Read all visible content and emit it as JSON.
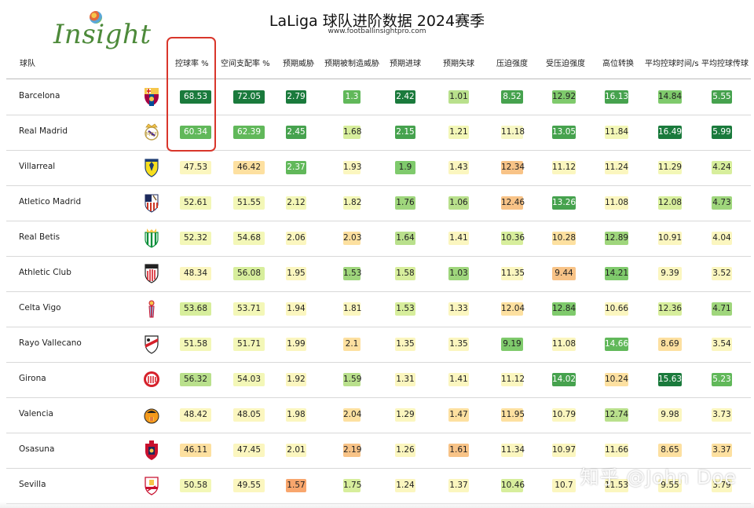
{
  "logo": {
    "text": "Insight"
  },
  "title": "LaLiga 球队进阶数据 2024赛季",
  "subtitle": "www.footballinsightpro.com",
  "headers": [
    "球队",
    "控球率 %",
    "空间支配率 %",
    "预期威胁",
    "预期被制造威胁",
    "预期进球",
    "预期失球",
    "压迫强度",
    "受压迫强度",
    "高位转换",
    "平均控球时间/s",
    "平均控球传球"
  ],
  "teams": [
    {
      "name": "Barcelona",
      "crest": "barcelona-crest",
      "values": [
        "68.53",
        "72.05",
        "2.79",
        "1.3",
        "2.42",
        "1.01",
        "8.52",
        "12.92",
        "16.13",
        "14.84",
        "5.55"
      ],
      "colors": [
        "#1a7a3c",
        "#1a7a3c",
        "#1a7a3c",
        "#61b85a",
        "#1a7a3c",
        "#b9e08c",
        "#46a24e",
        "#7fca6c",
        "#46a24e",
        "#7fca6c",
        "#46a24e"
      ]
    },
    {
      "name": "Real Madrid",
      "crest": "real-madrid-crest",
      "values": [
        "60.34",
        "62.39",
        "2.45",
        "1.68",
        "2.15",
        "1.21",
        "11.18",
        "13.05",
        "11.84",
        "16.49",
        "5.99"
      ],
      "colors": [
        "#61b85a",
        "#61b85a",
        "#46a24e",
        "#d7ee9c",
        "#46a24e",
        "#f3f7b7",
        "#f7f7c4",
        "#46a24e",
        "#f3f7b7",
        "#1a7a3c",
        "#1a7a3c"
      ]
    },
    {
      "name": "Villarreal",
      "crest": "villarreal-crest",
      "values": [
        "47.53",
        "46.42",
        "2.37",
        "1.93",
        "1.9",
        "1.43",
        "12.34",
        "11.12",
        "11.24",
        "11.29",
        "4.24"
      ],
      "colors": [
        "#fbf6bf",
        "#fde0a0",
        "#61b85a",
        "#fbf6bf",
        "#7fca6c",
        "#fbf6bf",
        "#f8c387",
        "#fbf6bf",
        "#fbf6bf",
        "#f3f7b7",
        "#d7ee9c"
      ]
    },
    {
      "name": "Atletico Madrid",
      "crest": "atletico-madrid-crest",
      "values": [
        "52.61",
        "51.55",
        "2.12",
        "1.82",
        "1.76",
        "1.06",
        "12.46",
        "13.26",
        "11.08",
        "12.08",
        "4.73"
      ],
      "colors": [
        "#f3f7b7",
        "#f3f7b7",
        "#f3f7b7",
        "#f3f7b7",
        "#9fd67c",
        "#b9e08c",
        "#f8c387",
        "#46a24e",
        "#fbf6bf",
        "#d7ee9c",
        "#9fd67c"
      ]
    },
    {
      "name": "Real Betis",
      "crest": "real-betis-crest",
      "values": [
        "52.32",
        "54.68",
        "2.06",
        "2.03",
        "1.64",
        "1.41",
        "10.36",
        "10.28",
        "12.89",
        "10.91",
        "4.04"
      ],
      "colors": [
        "#f3f7b7",
        "#f3f7b7",
        "#fbf6bf",
        "#fde0a0",
        "#b9e08c",
        "#fbf6bf",
        "#d7ee9c",
        "#fde0a0",
        "#9fd67c",
        "#fbf6bf",
        "#fbf6bf"
      ]
    },
    {
      "name": "Athletic Club",
      "crest": "athletic-club-crest",
      "values": [
        "48.34",
        "56.08",
        "1.95",
        "1.53",
        "1.58",
        "1.03",
        "11.35",
        "9.44",
        "14.21",
        "9.39",
        "3.52"
      ],
      "colors": [
        "#fbf6bf",
        "#d7ee9c",
        "#fbf6bf",
        "#9fd67c",
        "#d7ee9c",
        "#9fd67c",
        "#fbf6bf",
        "#f8c387",
        "#7fca6c",
        "#fbf6bf",
        "#fbf6bf"
      ]
    },
    {
      "name": "Celta Vigo",
      "crest": "celta-vigo-crest",
      "values": [
        "53.68",
        "53.71",
        "1.94",
        "1.81",
        "1.53",
        "1.33",
        "12.04",
        "12.84",
        "10.66",
        "12.36",
        "4.71"
      ],
      "colors": [
        "#d7ee9c",
        "#f3f7b7",
        "#fbf6bf",
        "#fbf6bf",
        "#d7ee9c",
        "#fbf6bf",
        "#fde0a0",
        "#7fca6c",
        "#fbf6bf",
        "#d7ee9c",
        "#9fd67c"
      ]
    },
    {
      "name": "Rayo Vallecano",
      "crest": "rayo-vallecano-crest",
      "values": [
        "51.58",
        "51.71",
        "1.99",
        "2.1",
        "1.35",
        "1.35",
        "9.19",
        "11.08",
        "14.66",
        "8.69",
        "3.54"
      ],
      "colors": [
        "#f3f7b7",
        "#f3f7b7",
        "#fbf6bf",
        "#fde0a0",
        "#fbf6bf",
        "#fbf6bf",
        "#7fca6c",
        "#fbf6bf",
        "#61b85a",
        "#fde0a0",
        "#fbf6bf"
      ]
    },
    {
      "name": "Girona",
      "crest": "girona-crest",
      "values": [
        "56.32",
        "54.03",
        "1.92",
        "1.59",
        "1.31",
        "1.41",
        "11.12",
        "14.02",
        "10.24",
        "15.63",
        "5.23"
      ],
      "colors": [
        "#b9e08c",
        "#f3f7b7",
        "#fbf6bf",
        "#b9e08c",
        "#fbf6bf",
        "#fbf6bf",
        "#fbf6bf",
        "#46a24e",
        "#fde0a0",
        "#1a7a3c",
        "#61b85a"
      ]
    },
    {
      "name": "Valencia",
      "crest": "valencia-crest",
      "values": [
        "48.42",
        "48.05",
        "1.98",
        "2.04",
        "1.29",
        "1.47",
        "11.95",
        "10.79",
        "12.74",
        "9.98",
        "3.73"
      ],
      "colors": [
        "#fbf6bf",
        "#fbf6bf",
        "#fbf6bf",
        "#fde0a0",
        "#fbf6bf",
        "#fde0a0",
        "#fde0a0",
        "#fbf6bf",
        "#b9e08c",
        "#fbf6bf",
        "#fbf6bf"
      ]
    },
    {
      "name": "Osasuna",
      "crest": "osasuna-crest",
      "values": [
        "46.11",
        "47.45",
        "2.01",
        "2.19",
        "1.26",
        "1.61",
        "11.34",
        "10.97",
        "11.66",
        "8.65",
        "3.37"
      ],
      "colors": [
        "#fde0a0",
        "#fbf6bf",
        "#fbf6bf",
        "#f8c387",
        "#fbf6bf",
        "#f8c387",
        "#fbf6bf",
        "#fbf6bf",
        "#fbf6bf",
        "#fde0a0",
        "#fde0a0"
      ]
    },
    {
      "name": "Sevilla",
      "crest": "sevilla-crest",
      "values": [
        "50.58",
        "49.55",
        "1.57",
        "1.75",
        "1.24",
        "1.37",
        "10.46",
        "10.7",
        "11.53",
        "9.55",
        "3.79"
      ],
      "colors": [
        "#f3f7b7",
        "#fbf6bf",
        "#f8a66d",
        "#d7ee9c",
        "#fbf6bf",
        "#fbf6bf",
        "#d7ee9c",
        "#fbf6bf",
        "#fbf6bf",
        "#fbf6bf",
        "#fbf6bf"
      ]
    }
  ],
  "watermark": {
    "text": "知乎 @John Doe"
  }
}
